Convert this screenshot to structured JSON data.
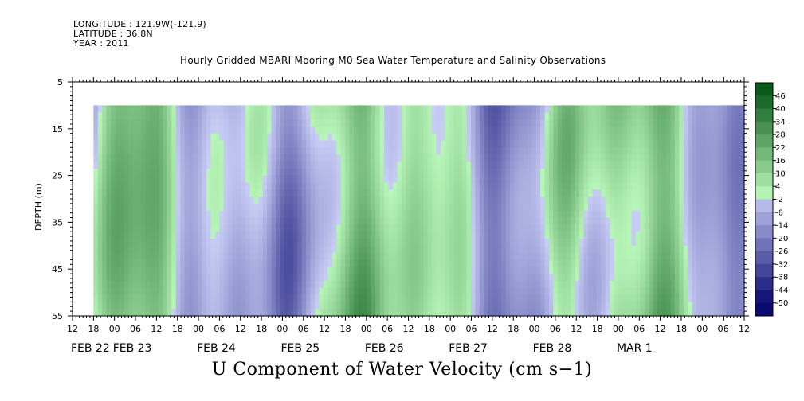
{
  "header": {
    "longitude": "LONGITUDE : 121.9W(-121.9)",
    "latitude": "LATITUDE : 36.8N",
    "year": "YEAR : 2011"
  },
  "chart_data": {
    "type": "heatmap",
    "title": "Hourly Gridded MBARI Mooring M0 Sea Water Temperature and Salinity Observations",
    "bottom_title": "U Component of Water Velocity (cm s−1)",
    "ylabel": "DEPTH (m)",
    "ylim": [
      5,
      55
    ],
    "y_reversed": true,
    "y_ticks": [
      "5",
      "15",
      "25",
      "35",
      "45",
      "55"
    ],
    "x_hour_ticks": [
      "12",
      "18",
      "00",
      "06",
      "12",
      "18",
      "00",
      "06",
      "12",
      "18",
      "00",
      "06",
      "12",
      "18",
      "00",
      "06",
      "12",
      "18",
      "00",
      "06",
      "12",
      "18",
      "00",
      "06",
      "12",
      "18",
      "00",
      "06",
      "12",
      "18",
      "00",
      "06",
      "12"
    ],
    "x_dates": [
      "FEB 22",
      "FEB 23",
      "FEB 24",
      "FEB 25",
      "FEB 26",
      "FEB 27",
      "FEB 28",
      "MAR  1"
    ],
    "data_start": "FEB 22 18:00",
    "data_end": "MAR 1 12:00",
    "data_top_depth": 10,
    "colorbar_levels": [
      "46",
      "40",
      "34",
      "28",
      "22",
      "16",
      "10",
      "4",
      "-2",
      "-8",
      "-14",
      "-20",
      "-26",
      "-32",
      "-38",
      "-44",
      "-50"
    ],
    "colors": {
      "negative_dark": "#0a0a70",
      "negative_light": "#c8cdf5",
      "positive_light": "#b8f5b8",
      "positive_dark": "#0a5a1a"
    }
  }
}
